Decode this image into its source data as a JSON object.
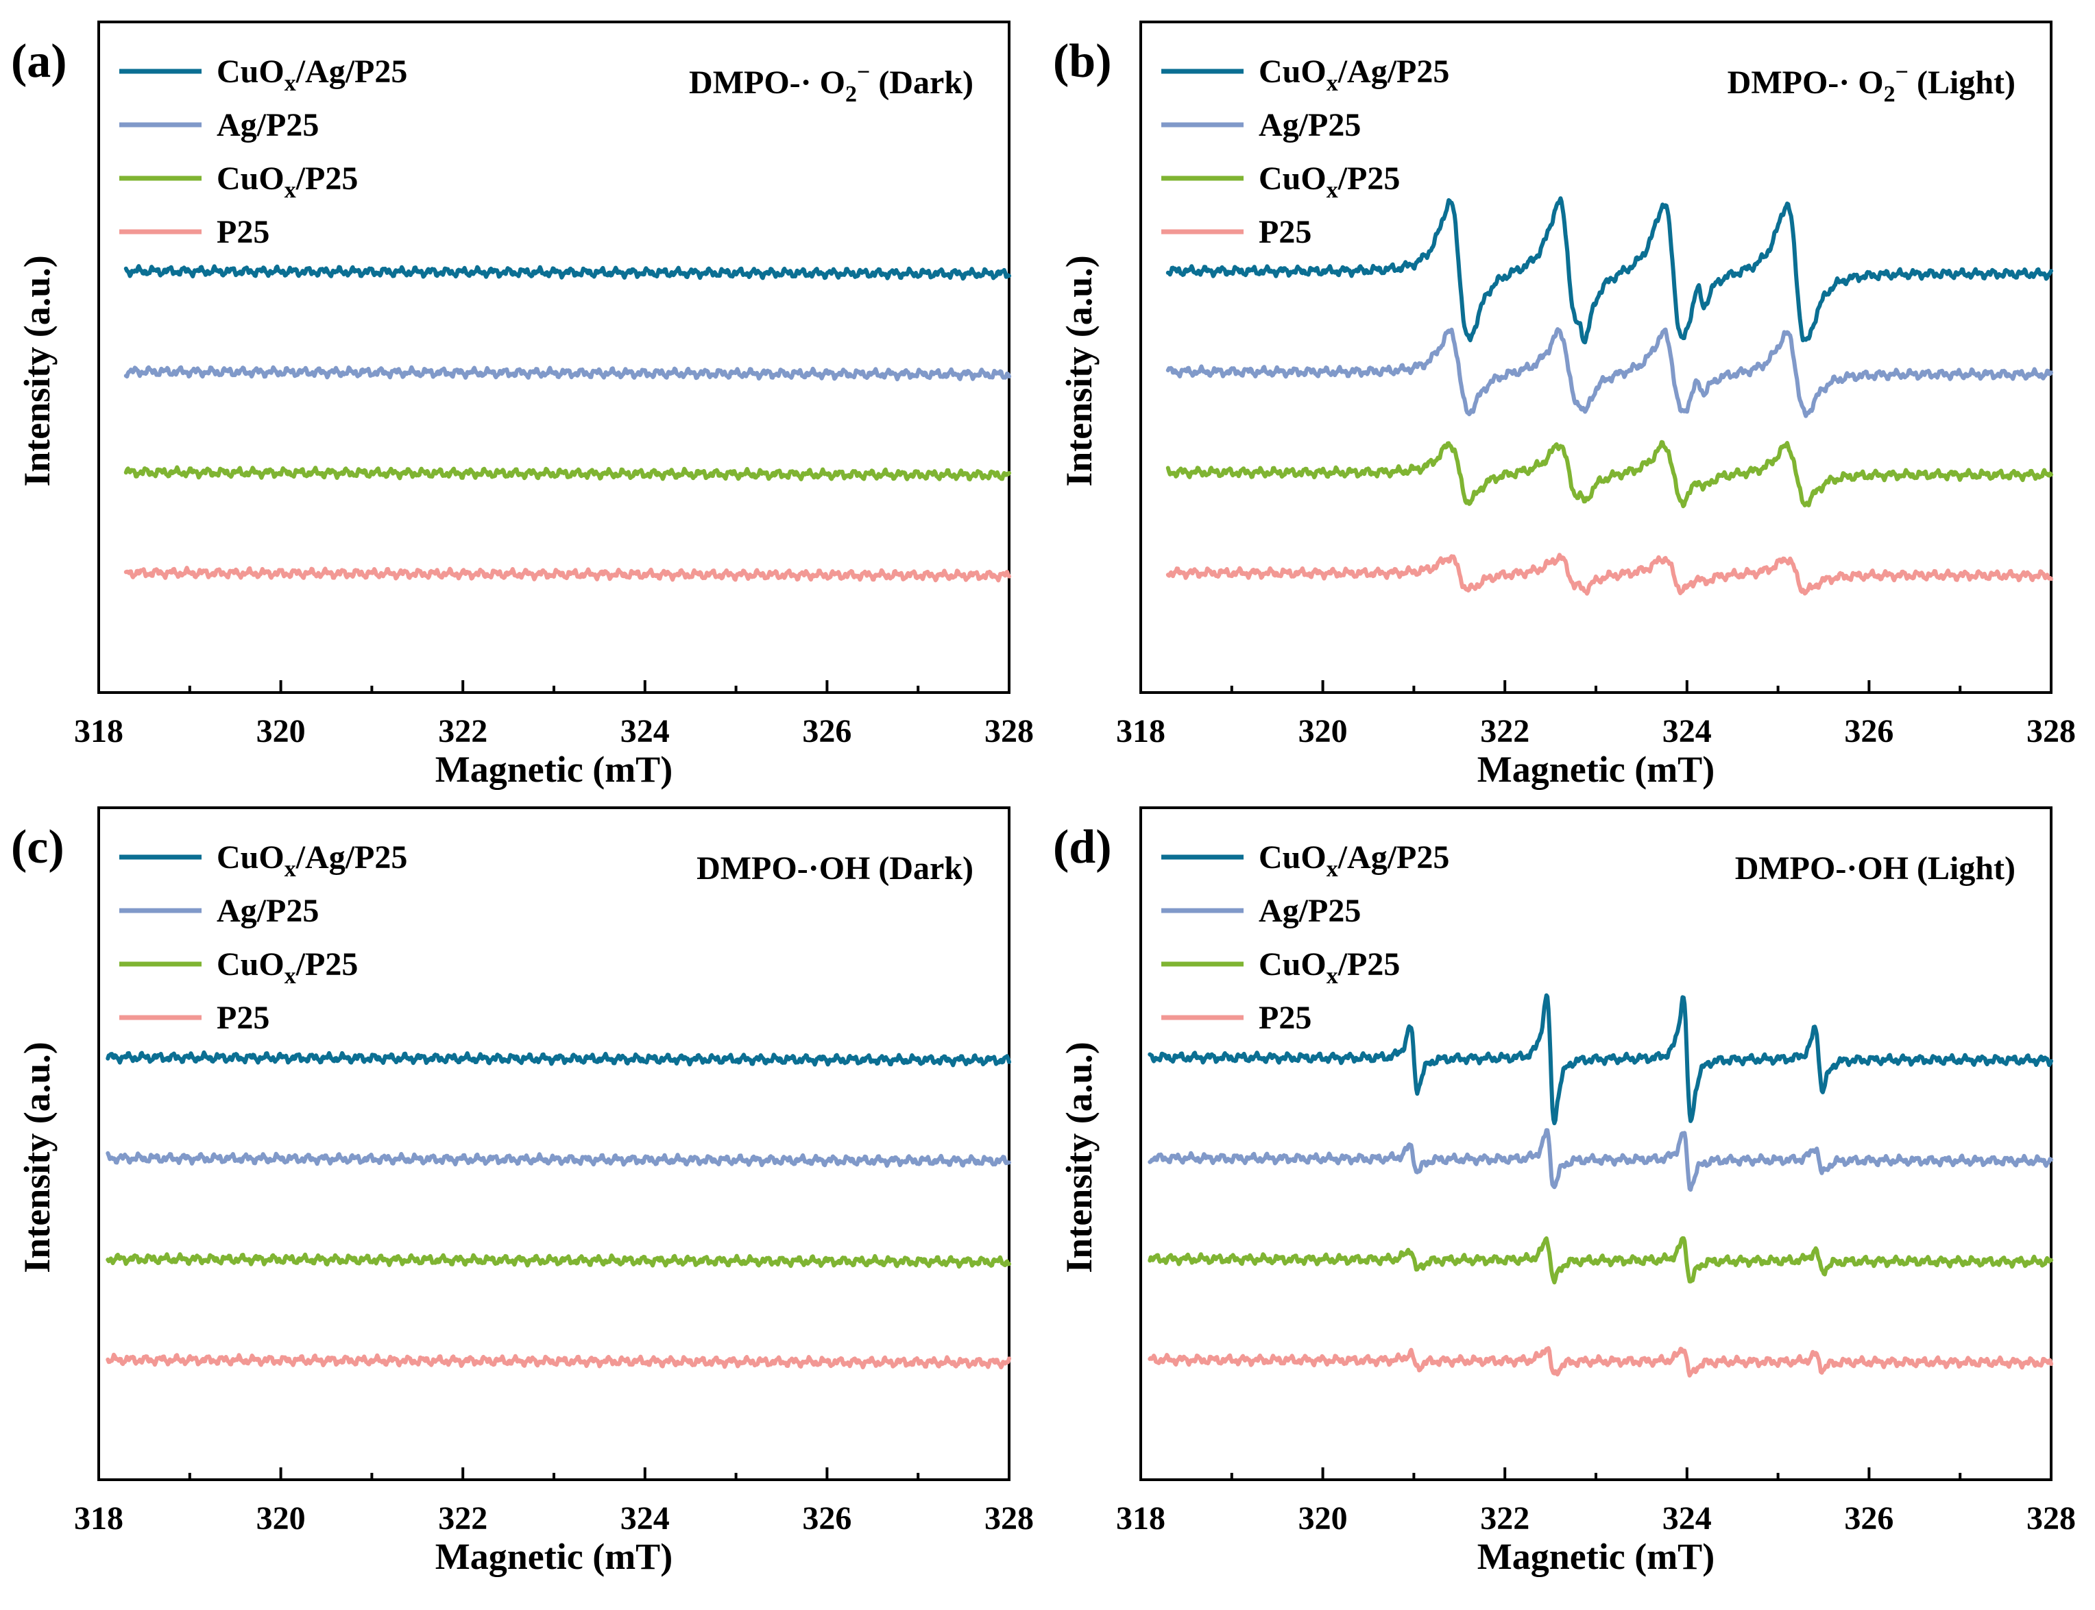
{
  "colors": {
    "CuOx/Ag/P25": "#0b6f93",
    "Ag/P25": "#8099c9",
    "CuOx/P25": "#7fb432",
    "P25": "#f29894"
  },
  "chart_data": [
    {
      "id": "a",
      "type": "line",
      "panel_label": "(a)",
      "annotation": {
        "main": "DMPO-· O",
        "sub": "2",
        "sup": "−",
        "tail": " (Dark)"
      },
      "xlabel": "Magnetic (mT)",
      "ylabel": "Intensity (a.u.)",
      "xlim": [
        318,
        328
      ],
      "ylim": [
        -4.4,
        2.6
      ],
      "xticks": [
        "318",
        "320",
        "322",
        "324",
        "326",
        "328"
      ],
      "radical": "superoxide",
      "light": false,
      "legend": [
        {
          "series": "CuOx/Ag/P25",
          "main": "CuO",
          "sub": "x",
          "tail": "/Ag/P25"
        },
        {
          "series": "Ag/P25",
          "main": "Ag/P25",
          "sub": "",
          "tail": ""
        },
        {
          "series": "CuOx/P25",
          "main": "CuO",
          "sub": "x",
          "tail": "/P25"
        },
        {
          "series": "P25",
          "main": "P25",
          "sub": "",
          "tail": ""
        }
      ],
      "series": [
        {
          "name": "CuOx/Ag/P25",
          "offset": 0,
          "x_start": 318.3,
          "amplitude": 0
        },
        {
          "name": "Ag/P25",
          "offset": -1.05,
          "x_start": 318.3,
          "amplitude": 0
        },
        {
          "name": "CuOx/P25",
          "offset": -2.1,
          "x_start": 318.3,
          "amplitude": 0
        },
        {
          "name": "P25",
          "offset": -3.15,
          "x_start": 318.3,
          "amplitude": 0
        }
      ]
    },
    {
      "id": "b",
      "type": "line",
      "panel_label": "(b)",
      "annotation": {
        "main": "DMPO-· O",
        "sub": "2",
        "sup": "−",
        "tail": " (Light)"
      },
      "xlabel": "Magnetic (mT)",
      "ylabel": "Intensity (a.u.)",
      "xlim": [
        318,
        328
      ],
      "ylim": [
        -4.4,
        2.6
      ],
      "xticks": [
        "318",
        "320",
        "322",
        "324",
        "326",
        "328"
      ],
      "radical": "superoxide",
      "light": true,
      "peak_centers_mT": [
        321.5,
        322.7,
        323.85,
        325.2
      ],
      "legend": [
        {
          "series": "CuOx/Ag/P25",
          "main": "CuO",
          "sub": "x",
          "tail": "/Ag/P25"
        },
        {
          "series": "Ag/P25",
          "main": "Ag/P25",
          "sub": "",
          "tail": ""
        },
        {
          "series": "CuOx/P25",
          "main": "CuO",
          "sub": "x",
          "tail": "/P25"
        },
        {
          "series": "P25",
          "main": "P25",
          "sub": "",
          "tail": ""
        }
      ],
      "series": [
        {
          "name": "CuOx/Ag/P25",
          "offset": 0,
          "x_start": 318.3,
          "amplitude": 0.72
        },
        {
          "name": "Ag/P25",
          "offset": -1.05,
          "x_start": 318.3,
          "amplitude": 0.42
        },
        {
          "name": "CuOx/P25",
          "offset": -2.1,
          "x_start": 318.3,
          "amplitude": 0.3
        },
        {
          "name": "P25",
          "offset": -3.15,
          "x_start": 318.3,
          "amplitude": 0.17
        }
      ]
    },
    {
      "id": "c",
      "type": "line",
      "panel_label": "(c)",
      "annotation": {
        "main": "DMPO-·OH (Dark)",
        "sub": "",
        "sup": "",
        "tail": ""
      },
      "xlabel": "Magnetic (mT)",
      "ylabel": "Intensity (a.u.)",
      "xlim": [
        318,
        328
      ],
      "ylim": [
        -4.4,
        2.6
      ],
      "xticks": [
        "318",
        "320",
        "322",
        "324",
        "326",
        "328"
      ],
      "radical": "hydroxyl",
      "light": false,
      "legend": [
        {
          "series": "CuOx/Ag/P25",
          "main": "CuO",
          "sub": "x",
          "tail": "/Ag/P25"
        },
        {
          "series": "Ag/P25",
          "main": "Ag/P25",
          "sub": "",
          "tail": ""
        },
        {
          "series": "CuOx/P25",
          "main": "CuO",
          "sub": "x",
          "tail": "/P25"
        },
        {
          "series": "P25",
          "main": "P25",
          "sub": "",
          "tail": ""
        }
      ],
      "series": [
        {
          "name": "CuOx/Ag/P25",
          "offset": 0,
          "x_start": 318.1,
          "amplitude": 0
        },
        {
          "name": "Ag/P25",
          "offset": -1.05,
          "x_start": 318.1,
          "amplitude": 0
        },
        {
          "name": "CuOx/P25",
          "offset": -2.1,
          "x_start": 318.1,
          "amplitude": 0
        },
        {
          "name": "P25",
          "offset": -3.15,
          "x_start": 318.1,
          "amplitude": 0
        }
      ]
    },
    {
      "id": "d",
      "type": "line",
      "panel_label": "(d)",
      "annotation": {
        "main": "DMPO-·OH (Light)",
        "sub": "",
        "sup": "",
        "tail": ""
      },
      "xlabel": "Magnetic (mT)",
      "ylabel": "Intensity (a.u.)",
      "xlim": [
        318,
        328
      ],
      "ylim": [
        -4.4,
        2.6
      ],
      "xticks": [
        "318",
        "320",
        "322",
        "324",
        "326",
        "328"
      ],
      "radical": "hydroxyl",
      "light": true,
      "peak_centers_mT": [
        321.0,
        322.5,
        324.0,
        325.45
      ],
      "peak_relative_intensities": [
        1,
        2,
        2,
        1
      ],
      "legend": [
        {
          "series": "CuOx/Ag/P25",
          "main": "CuO",
          "sub": "x",
          "tail": "/Ag/P25"
        },
        {
          "series": "Ag/P25",
          "main": "Ag/P25",
          "sub": "",
          "tail": ""
        },
        {
          "series": "CuOx/P25",
          "main": "CuO",
          "sub": "x",
          "tail": "/P25"
        },
        {
          "series": "P25",
          "main": "P25",
          "sub": "",
          "tail": ""
        }
      ],
      "series": [
        {
          "name": "CuOx/Ag/P25",
          "offset": 0,
          "x_start": 318.1,
          "amplitude": 0.65
        },
        {
          "name": "Ag/P25",
          "offset": -1.05,
          "x_start": 318.1,
          "amplitude": 0.28
        },
        {
          "name": "CuOx/P25",
          "offset": -2.1,
          "x_start": 318.1,
          "amplitude": 0.22
        },
        {
          "name": "P25",
          "offset": -3.15,
          "x_start": 318.1,
          "amplitude": 0.15
        }
      ]
    }
  ]
}
